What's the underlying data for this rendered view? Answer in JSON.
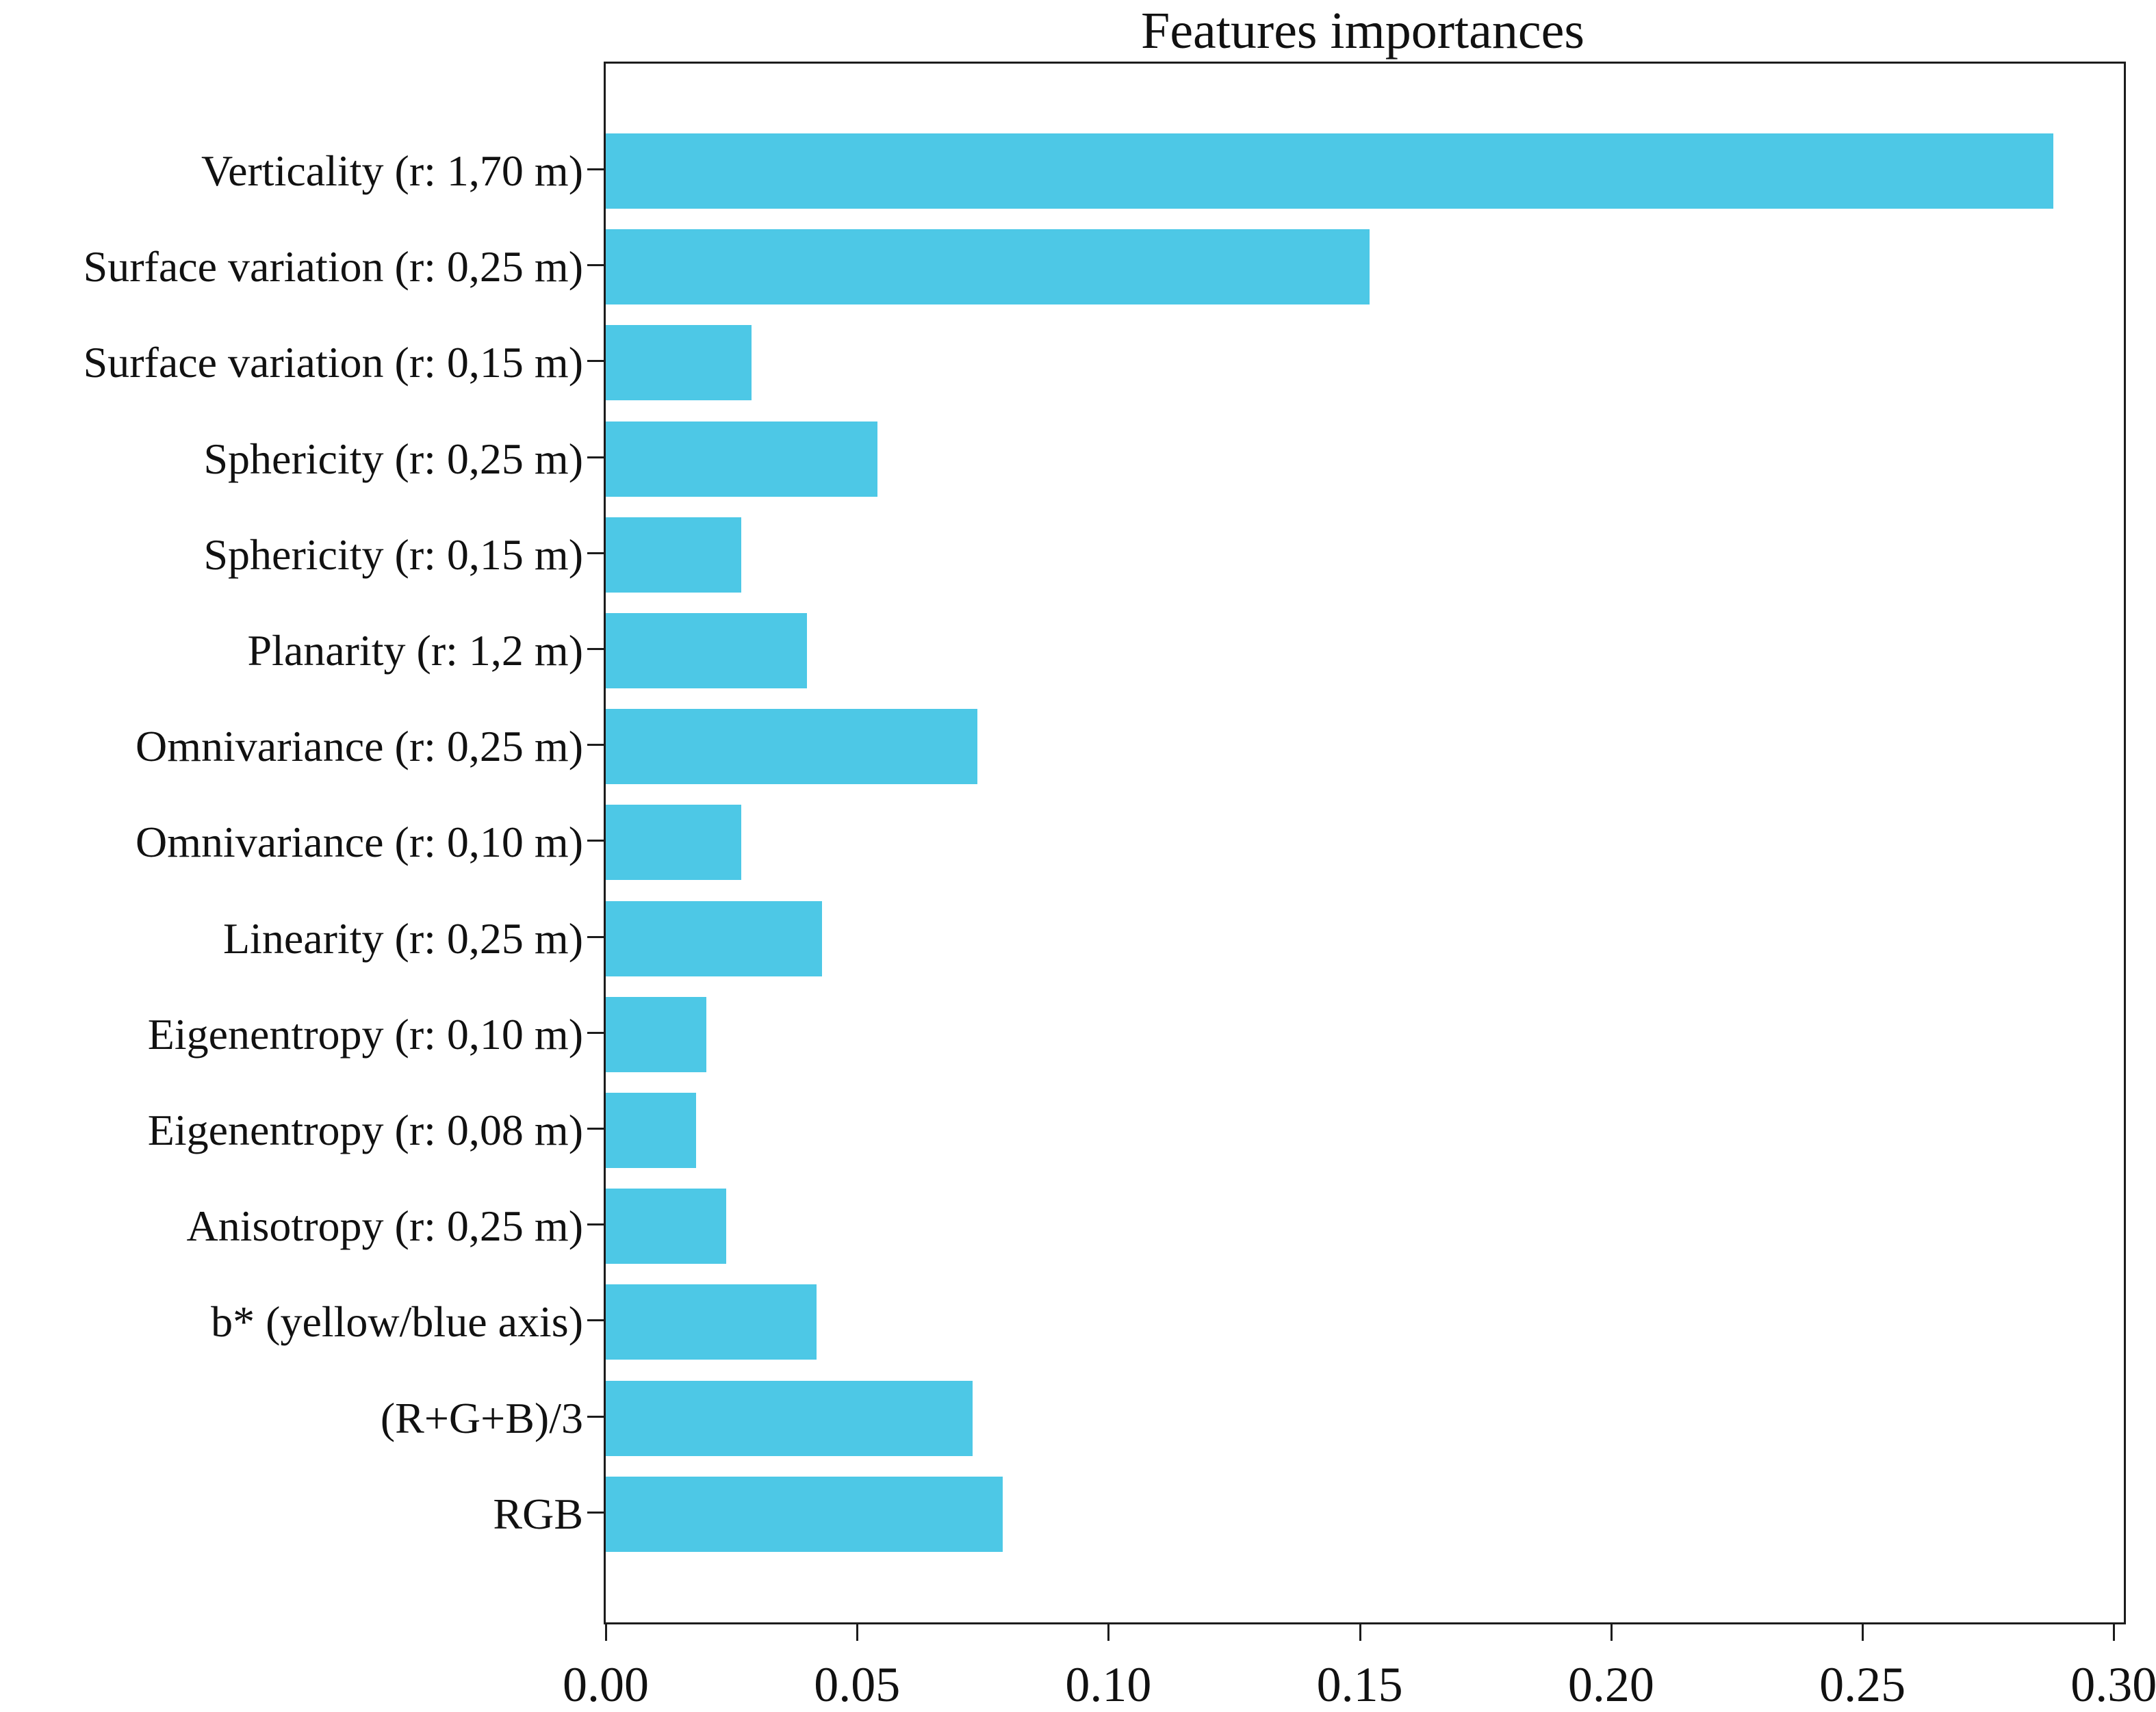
{
  "chart_data": {
    "type": "bar",
    "orientation": "horizontal",
    "title": "Features importances",
    "categories": [
      "Verticality (r: 1,70 m)",
      "Surface variation (r: 0,25 m)",
      "Surface variation (r: 0,15 m)",
      "Sphericity (r: 0,25 m)",
      "Sphericity (r: 0,15 m)",
      "Planarity (r: 1,2 m)",
      "Omnivariance (r: 0,25 m)",
      "Omnivariance (r: 0,10 m)",
      "Linearity (r: 0,25 m)",
      "Eigenentropy (r: 0,10 m)",
      "Eigenentropy (r: 0,08 m)",
      "Anisotropy (r: 0,25 m)",
      "b* (yellow/blue axis)",
      "(R+G+B)/3",
      "RGB"
    ],
    "values": [
      0.288,
      0.152,
      0.029,
      0.054,
      0.027,
      0.04,
      0.074,
      0.027,
      0.043,
      0.02,
      0.018,
      0.024,
      0.042,
      0.073,
      0.079
    ],
    "xlabel": "",
    "ylabel": "",
    "x_ticks": [
      0.0,
      0.05,
      0.1,
      0.15,
      0.2,
      0.25,
      0.3
    ],
    "x_tick_labels": [
      "0.00",
      "0.05",
      "0.10",
      "0.15",
      "0.20",
      "0.25",
      "0.30"
    ],
    "xlim": [
      0,
      0.302
    ],
    "grid": false,
    "legend_position": "none",
    "bar_color": "#4DC8E6",
    "axis_color": "#1c1c1c",
    "text_color": "#111111"
  }
}
